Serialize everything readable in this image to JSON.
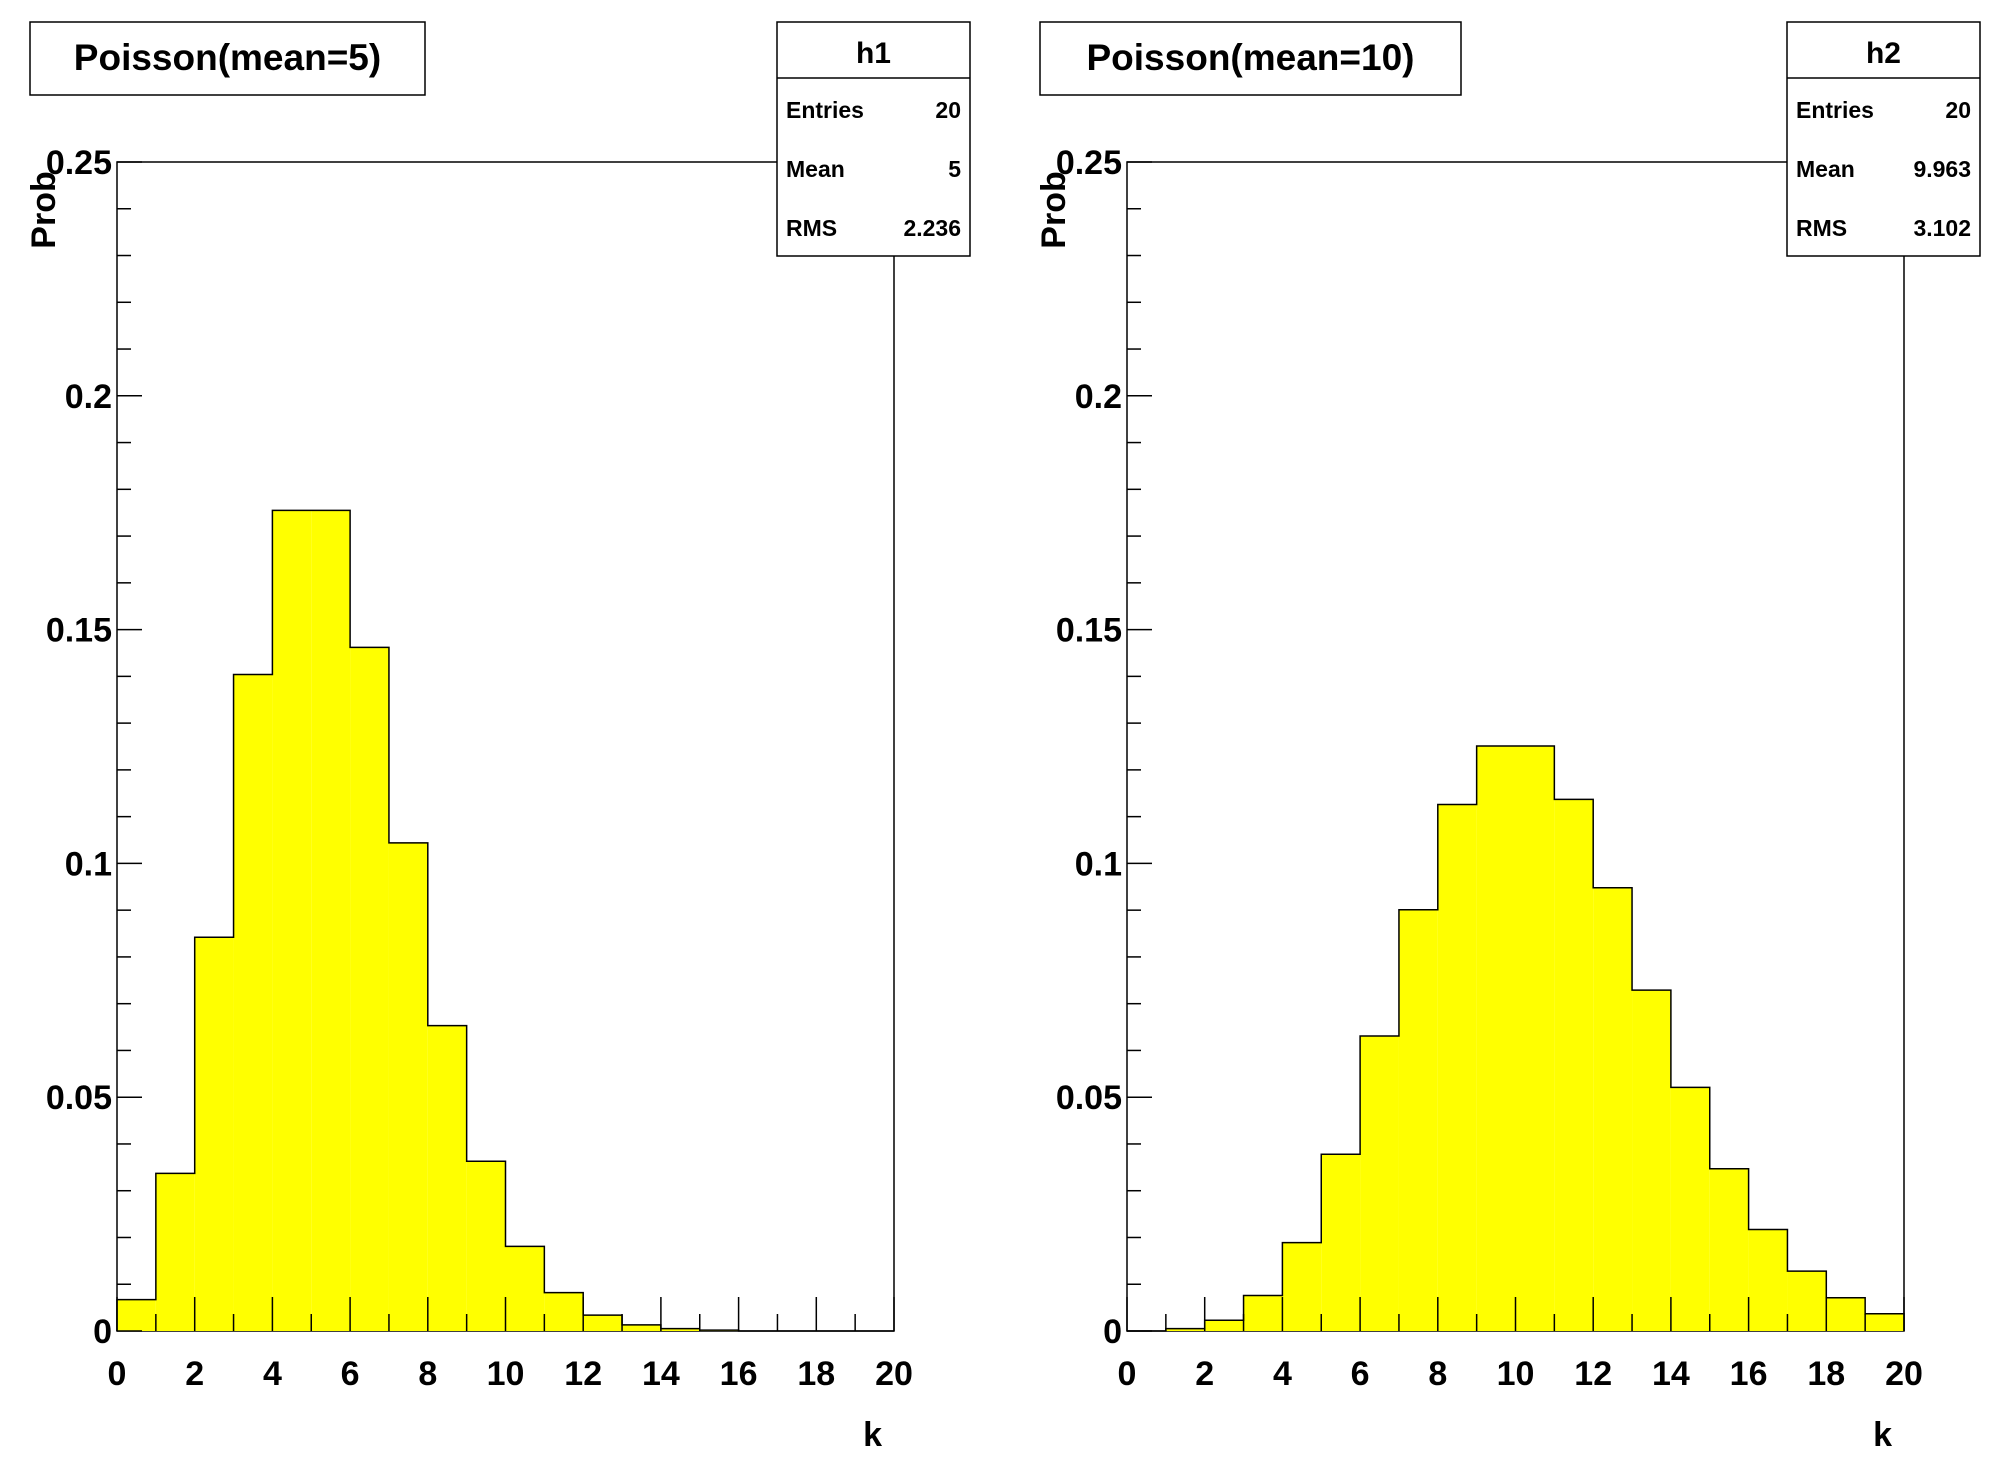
{
  "chart_data": [
    {
      "type": "bar",
      "title": "Poisson(mean=5)",
      "xlabel": "k",
      "ylabel": "Prob",
      "xlim": [
        0,
        20
      ],
      "ylim": [
        0,
        0.25
      ],
      "fill_color": "#ffff00",
      "x_ticks": [
        "0",
        "2",
        "4",
        "6",
        "8",
        "10",
        "12",
        "14",
        "16",
        "18",
        "20"
      ],
      "y_ticks": [
        "0",
        "0.05",
        "0.1",
        "0.15",
        "0.2",
        "0.25"
      ],
      "bin_edges": [
        0,
        1,
        2,
        3,
        4,
        5,
        6,
        7,
        8,
        9,
        10,
        11,
        12,
        13,
        14,
        15,
        16,
        17,
        18,
        19,
        20
      ],
      "values": [
        0.0067,
        0.0337,
        0.0842,
        0.1404,
        0.1755,
        0.1755,
        0.1462,
        0.1044,
        0.0653,
        0.0363,
        0.0181,
        0.0082,
        0.0034,
        0.0013,
        0.0005,
        0.0002,
        0.0,
        0.0,
        0.0,
        0.0
      ],
      "stats": {
        "name": "h1",
        "rows": [
          {
            "label": "Entries",
            "value": "20"
          },
          {
            "label": "Mean",
            "value": "5"
          },
          {
            "label": "RMS",
            "value": "2.236"
          }
        ]
      }
    },
    {
      "type": "bar",
      "title": "Poisson(mean=10)",
      "xlabel": "k",
      "ylabel": "Prob",
      "xlim": [
        0,
        20
      ],
      "ylim": [
        0,
        0.25
      ],
      "fill_color": "#ffff00",
      "x_ticks": [
        "0",
        "2",
        "4",
        "6",
        "8",
        "10",
        "12",
        "14",
        "16",
        "18",
        "20"
      ],
      "y_ticks": [
        "0",
        "0.05",
        "0.1",
        "0.15",
        "0.2",
        "0.25"
      ],
      "bin_edges": [
        0,
        1,
        2,
        3,
        4,
        5,
        6,
        7,
        8,
        9,
        10,
        11,
        12,
        13,
        14,
        15,
        16,
        17,
        18,
        19,
        20
      ],
      "values": [
        0.0,
        0.0005,
        0.0023,
        0.0076,
        0.0189,
        0.0378,
        0.0631,
        0.0901,
        0.1126,
        0.1251,
        0.1251,
        0.1137,
        0.0948,
        0.0729,
        0.0521,
        0.0347,
        0.0217,
        0.0128,
        0.0071,
        0.0037
      ],
      "stats": {
        "name": "h2",
        "rows": [
          {
            "label": "Entries",
            "value": "20"
          },
          {
            "label": "Mean",
            "value": "9.963"
          },
          {
            "label": "RMS",
            "value": "3.102"
          }
        ]
      }
    }
  ]
}
